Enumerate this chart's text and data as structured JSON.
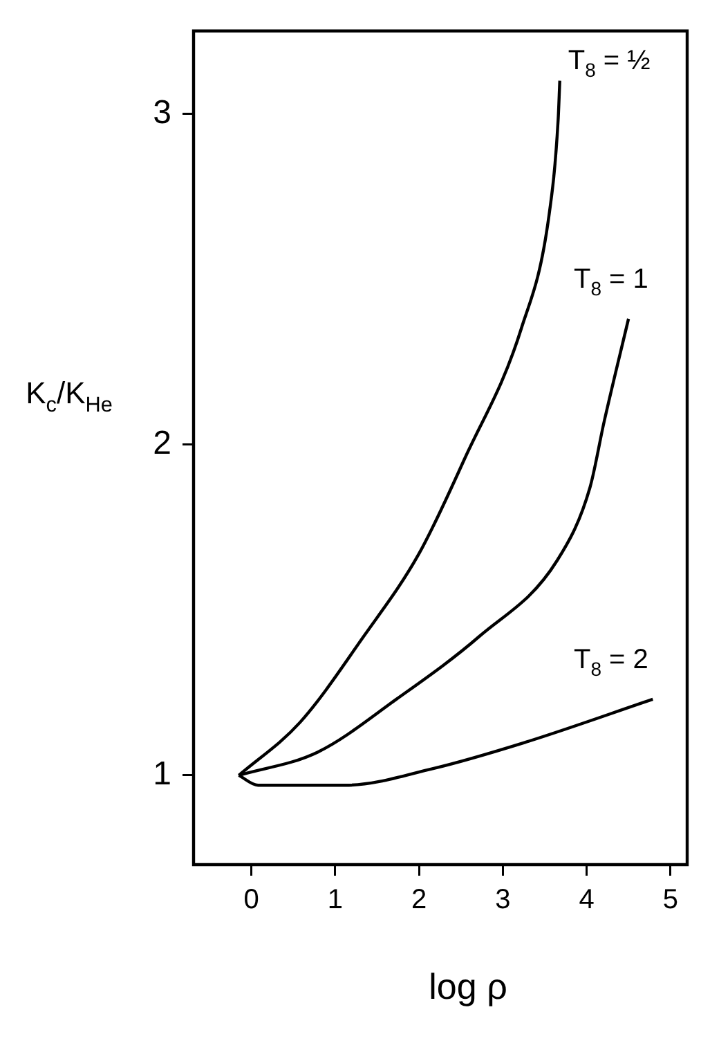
{
  "chart_data": {
    "type": "line",
    "xlabel": "log ρ",
    "ylabel": "K$_{c}$/K$_{He}$",
    "xlim": [
      -0.69,
      5.2
    ],
    "ylim": [
      0.73,
      3.25
    ],
    "xticks": [
      0,
      1,
      2,
      3,
      4,
      5
    ],
    "yticks": [
      1,
      2,
      3
    ],
    "grid": false,
    "legend": false,
    "marker": "none",
    "line_style": "solid",
    "series": [
      {
        "name": "T$_{8}$ = ½",
        "color": "#000000",
        "x": [
          -0.15,
          0.58,
          1.34,
          2.0,
          2.55,
          3.22,
          3.55,
          3.66,
          3.68
        ],
        "values": [
          1.0,
          1.16,
          1.42,
          1.67,
          1.96,
          2.35,
          2.69,
          2.98,
          3.1
        ]
      },
      {
        "name": "T$_{8}$ = 1",
        "color": "#000000",
        "x": [
          -0.15,
          0.79,
          1.73,
          2.72,
          3.65,
          4.04,
          4.21,
          4.5
        ],
        "values": [
          1.0,
          1.07,
          1.23,
          1.42,
          1.65,
          1.87,
          2.07,
          2.38
        ]
      },
      {
        "name": "T$_{8}$ = 2",
        "color": "#000000",
        "x": [
          -0.15,
          0.08,
          1.12,
          2.16,
          3.27,
          4.79
        ],
        "values": [
          1.0,
          0.97,
          0.97,
          1.02,
          1.1,
          1.23
        ]
      }
    ]
  }
}
